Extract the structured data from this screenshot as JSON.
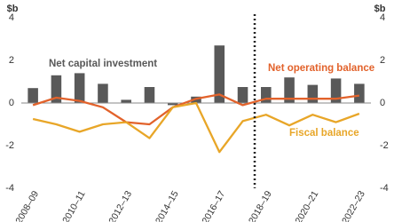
{
  "chart_data": {
    "type": "bar-line",
    "ylabel": "$b",
    "y2label": "$b",
    "categories": [
      "2008–09",
      null,
      "2010–11",
      null,
      "2012–13",
      null,
      "2014–15",
      null,
      "2016–17",
      null,
      "2018–19",
      null,
      "2020–21",
      null,
      "2022–23"
    ],
    "series": [
      {
        "name": "Net capital investment",
        "type": "bar",
        "color": "#595959",
        "values": [
          0.7,
          1.3,
          1.4,
          0.9,
          0.15,
          0.75,
          -0.1,
          0.3,
          2.7,
          0.75,
          0.75,
          1.2,
          0.85,
          1.15,
          0.9
        ]
      },
      {
        "name": "Net operating balance",
        "type": "line",
        "color": "#e2622b",
        "values": [
          -0.1,
          0.25,
          0.1,
          -0.2,
          -0.9,
          -1.0,
          -0.2,
          0.2,
          0.4,
          -0.1,
          0.2,
          0.2,
          0.2,
          0.2,
          0.35
        ]
      },
      {
        "name": "Fiscal balance",
        "type": "line",
        "color": "#e8a628",
        "values": [
          -0.75,
          -1.0,
          -1.35,
          -1.0,
          -0.9,
          -1.65,
          -0.2,
          0.0,
          -2.3,
          -0.85,
          -0.55,
          -1.05,
          -0.55,
          -0.9,
          -0.5
        ]
      }
    ],
    "ylim": [
      -4,
      4
    ],
    "yticks": [
      -4,
      -2,
      0,
      2,
      4
    ],
    "y2lim": [
      -4,
      4
    ],
    "y2ticks": [
      -4,
      -2,
      0,
      2,
      4
    ]
  }
}
